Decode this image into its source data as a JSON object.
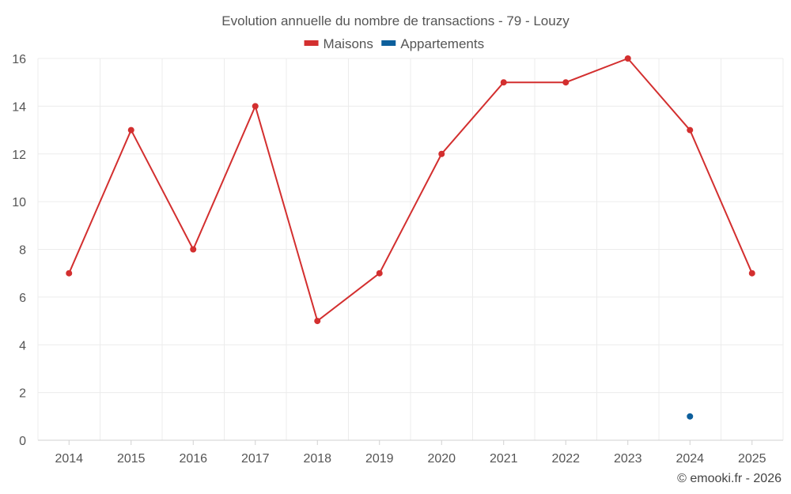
{
  "chart_data": {
    "type": "line",
    "title": "Evolution annuelle du nombre de transactions - 79 - Louzy",
    "x": [
      "2014",
      "2015",
      "2016",
      "2017",
      "2018",
      "2019",
      "2020",
      "2021",
      "2022",
      "2023",
      "2024",
      "2025"
    ],
    "series": [
      {
        "name": "Maisons",
        "color": "#d32f2f",
        "values": [
          7,
          13,
          8,
          14,
          5,
          7,
          12,
          15,
          15,
          16,
          13,
          7
        ]
      },
      {
        "name": "Appartements",
        "color": "#0d5f9c",
        "values": [
          null,
          null,
          null,
          null,
          null,
          null,
          null,
          null,
          null,
          null,
          1,
          null
        ]
      }
    ],
    "ylim": [
      0,
      16
    ],
    "yticks": [
      "0",
      "2",
      "4",
      "6",
      "8",
      "10",
      "12",
      "14",
      "16"
    ],
    "grid": true,
    "legend_position": "top-center"
  },
  "footer": {
    "credit": "© emooki.fr - 2026"
  }
}
